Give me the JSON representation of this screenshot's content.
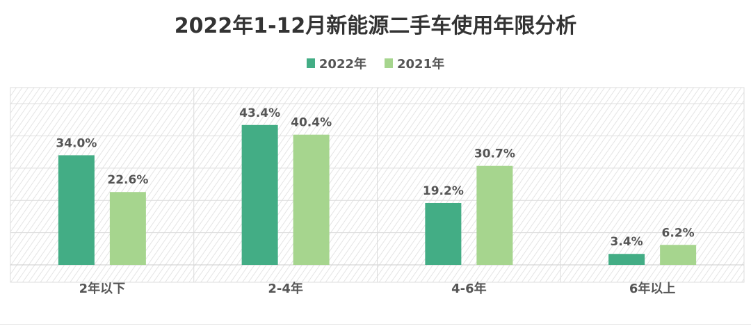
{
  "chart_data": {
    "type": "bar",
    "title": "2022年1-12月新能源二手车使用年限分析",
    "categories": [
      "2年以下",
      "2-4年",
      "4-6年",
      "6年以上"
    ],
    "series": [
      {
        "name": "2022年",
        "color": "#43ad85",
        "values": [
          34.0,
          43.4,
          19.2,
          3.4
        ],
        "labels": [
          "34.0%",
          "43.4%",
          "19.2%",
          "3.4%"
        ]
      },
      {
        "name": "2021年",
        "color": "#a6d58e",
        "values": [
          22.6,
          40.4,
          30.7,
          6.2
        ],
        "labels": [
          "22.6%",
          "40.4%",
          "30.7%",
          "6.2%"
        ]
      }
    ],
    "ylim": [
      0,
      55
    ],
    "grid": true,
    "legend_position": "top-center",
    "xlabel": "",
    "ylabel": ""
  }
}
